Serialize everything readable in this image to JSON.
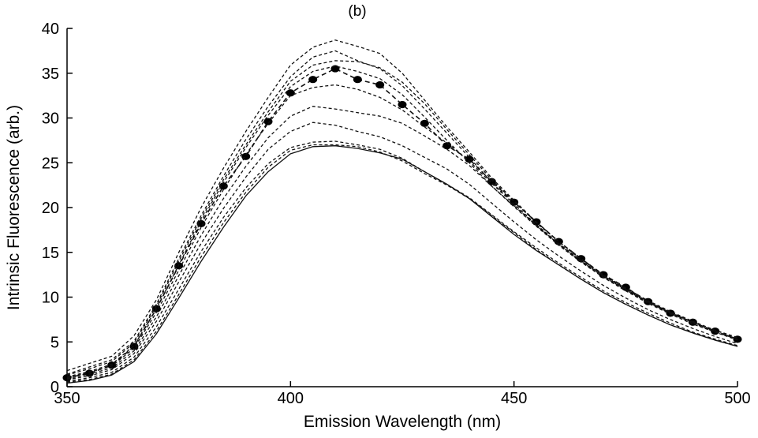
{
  "chart_data": {
    "type": "line",
    "title": "(b)",
    "xlabel": "Emission Wavelength (nm)",
    "ylabel": "Intrinsic Fluorescence (arb.)",
    "xlim": [
      350,
      500
    ],
    "ylim": [
      0,
      40
    ],
    "xticks": [
      350,
      400,
      450,
      500
    ],
    "yticks": [
      0,
      5,
      10,
      15,
      20,
      25,
      30,
      35,
      40
    ],
    "grid": false,
    "legend": "none",
    "x": [
      350,
      355,
      360,
      365,
      370,
      375,
      380,
      385,
      390,
      395,
      400,
      405,
      410,
      415,
      420,
      425,
      430,
      435,
      440,
      445,
      450,
      455,
      460,
      465,
      470,
      475,
      480,
      485,
      490,
      495,
      500
    ],
    "series": [
      {
        "style": "marker",
        "values": [
          1.0,
          1.5,
          2.4,
          4.5,
          8.7,
          13.5,
          18.2,
          22.4,
          25.7,
          29.6,
          32.8,
          34.3,
          35.5,
          34.3,
          33.7,
          31.5,
          29.4,
          26.9,
          25.4,
          22.9,
          20.6,
          18.4,
          16.2,
          14.3,
          12.5,
          11.1,
          9.5,
          8.2,
          7.2,
          6.2,
          5.3
        ]
      },
      {
        "style": "dashed",
        "values": [
          1.8,
          2.6,
          3.4,
          5.7,
          9.7,
          15.0,
          20.0,
          24.4,
          28.5,
          32.3,
          35.9,
          37.9,
          38.7,
          38.0,
          37.2,
          35.0,
          32.0,
          29.0,
          26.2,
          23.3,
          20.8,
          18.4,
          16.2,
          14.2,
          12.4,
          10.9,
          9.5,
          8.3,
          7.2,
          6.3,
          5.5
        ]
      },
      {
        "style": "dashed",
        "values": [
          1.4,
          2.2,
          3.0,
          5.1,
          9.2,
          14.3,
          19.1,
          23.5,
          27.6,
          31.3,
          34.6,
          36.8,
          37.5,
          36.4,
          35.5,
          33.6,
          31.0,
          28.3,
          25.6,
          22.8,
          20.4,
          18.0,
          15.9,
          14.0,
          12.2,
          10.7,
          9.3,
          8.1,
          7.0,
          6.1,
          5.3
        ]
      },
      {
        "style": "dashed",
        "values": [
          1.3,
          2.0,
          2.8,
          4.9,
          9.0,
          14.0,
          18.8,
          23.1,
          27.0,
          30.7,
          34.1,
          35.9,
          36.4,
          36.3,
          35.6,
          34.0,
          31.6,
          28.7,
          25.9,
          23.1,
          20.7,
          18.3,
          16.2,
          14.3,
          12.5,
          11.0,
          9.6,
          8.4,
          7.3,
          6.3,
          5.4
        ]
      },
      {
        "style": "dashed",
        "values": [
          1.1,
          1.7,
          2.5,
          4.6,
          8.7,
          13.6,
          18.5,
          22.8,
          26.7,
          30.3,
          33.5,
          35.2,
          35.8,
          35.2,
          34.4,
          32.6,
          30.1,
          27.5,
          25.0,
          22.4,
          20.1,
          17.9,
          15.8,
          13.9,
          12.2,
          10.8,
          9.4,
          8.2,
          7.2,
          6.2,
          5.3
        ]
      },
      {
        "style": "dashed",
        "values": [
          1.0,
          1.6,
          2.3,
          4.3,
          8.3,
          13.0,
          17.8,
          22.0,
          25.9,
          29.4,
          32.5,
          33.4,
          33.7,
          33.2,
          32.3,
          30.9,
          29.0,
          27.2,
          25.2,
          22.7,
          20.4,
          18.1,
          16.0,
          14.1,
          12.4,
          10.9,
          9.5,
          8.3,
          7.2,
          6.2,
          5.3
        ]
      },
      {
        "style": "dashed",
        "values": [
          0.9,
          1.4,
          2.1,
          4.0,
          7.8,
          12.4,
          16.9,
          21.0,
          24.6,
          27.8,
          30.2,
          31.3,
          31.0,
          30.6,
          30.2,
          29.4,
          28.0,
          26.5,
          24.7,
          22.4,
          20.2,
          18.0,
          15.9,
          14.0,
          12.3,
          10.8,
          9.4,
          8.2,
          7.1,
          6.1,
          5.2
        ]
      },
      {
        "style": "dashed",
        "values": [
          0.8,
          1.2,
          1.9,
          3.7,
          7.3,
          11.7,
          16.0,
          19.9,
          23.4,
          26.5,
          28.5,
          29.5,
          29.2,
          28.5,
          27.9,
          26.9,
          25.6,
          24.3,
          22.6,
          20.5,
          18.4,
          16.4,
          14.6,
          12.9,
          11.3,
          9.9,
          8.6,
          7.5,
          6.5,
          5.6,
          4.8
        ]
      },
      {
        "style": "dashed",
        "values": [
          0.6,
          1.0,
          1.6,
          3.3,
          6.7,
          10.9,
          15.1,
          18.9,
          22.2,
          24.9,
          26.7,
          27.3,
          27.4,
          27.0,
          26.5,
          25.5,
          24.0,
          22.6,
          21.1,
          19.2,
          17.3,
          15.5,
          13.8,
          12.2,
          10.7,
          9.4,
          8.2,
          7.1,
          6.1,
          5.3,
          4.6
        ]
      },
      {
        "style": "dashed",
        "values": [
          0.5,
          0.8,
          1.4,
          3.0,
          6.2,
          10.3,
          14.5,
          18.3,
          21.7,
          24.5,
          26.4,
          27.0,
          27.0,
          26.8,
          26.2,
          25.2,
          23.8,
          22.5,
          21.0,
          19.1,
          17.2,
          15.3,
          13.6,
          12.0,
          10.5,
          9.2,
          8.0,
          6.9,
          6.0,
          5.2,
          4.5
        ]
      },
      {
        "style": "solid",
        "values": [
          0.4,
          0.7,
          1.3,
          2.8,
          5.9,
          9.9,
          14.0,
          17.8,
          21.3,
          24.0,
          26.0,
          26.8,
          26.9,
          26.6,
          26.1,
          25.4,
          24.0,
          22.6,
          21.0,
          19.0,
          17.0,
          15.2,
          13.6,
          12.0,
          10.5,
          9.2,
          8.0,
          6.9,
          6.0,
          5.2,
          4.5
        ]
      }
    ]
  }
}
